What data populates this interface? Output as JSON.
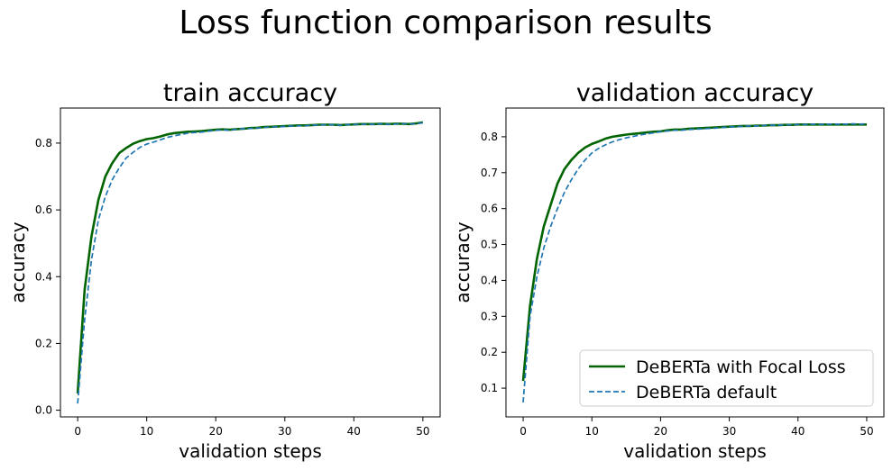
{
  "suptitle": "Loss function comparison results",
  "colors": {
    "focal": "#006400",
    "default": "#1f77b4"
  },
  "chart_data": [
    {
      "type": "line",
      "title": "train accuracy",
      "xlabel": "validation steps",
      "ylabel": "accuracy",
      "xlim": [
        -2.5,
        52.5
      ],
      "ylim": [
        -0.02,
        0.905
      ],
      "xticks": [
        0,
        10,
        20,
        30,
        40,
        50
      ],
      "yticks": [
        0.0,
        0.2,
        0.4,
        0.6,
        0.8
      ],
      "ytick_labels": [
        "0.0",
        "0.2",
        "0.4",
        "0.6",
        "0.8"
      ],
      "grid": false,
      "legend": null,
      "x": [
        0,
        1,
        2,
        3,
        4,
        5,
        6,
        7,
        8,
        9,
        10,
        11,
        12,
        13,
        14,
        15,
        16,
        17,
        18,
        19,
        20,
        21,
        22,
        23,
        24,
        25,
        26,
        27,
        28,
        29,
        30,
        31,
        32,
        33,
        34,
        35,
        36,
        37,
        38,
        39,
        40,
        41,
        42,
        43,
        44,
        45,
        46,
        47,
        48,
        49,
        50
      ],
      "series": [
        {
          "name": "DeBERTa with Focal Loss",
          "style": "solid",
          "values": [
            0.05,
            0.36,
            0.52,
            0.63,
            0.7,
            0.74,
            0.77,
            0.785,
            0.798,
            0.806,
            0.812,
            0.815,
            0.82,
            0.826,
            0.83,
            0.832,
            0.834,
            0.835,
            0.836,
            0.838,
            0.84,
            0.841,
            0.84,
            0.842,
            0.843,
            0.845,
            0.846,
            0.848,
            0.849,
            0.85,
            0.851,
            0.852,
            0.853,
            0.853,
            0.854,
            0.855,
            0.855,
            0.855,
            0.854,
            0.855,
            0.856,
            0.857,
            0.857,
            0.857,
            0.858,
            0.857,
            0.858,
            0.858,
            0.857,
            0.859,
            0.862
          ]
        },
        {
          "name": "DeBERTa default",
          "style": "dashed",
          "values": [
            0.02,
            0.27,
            0.45,
            0.57,
            0.64,
            0.69,
            0.725,
            0.755,
            0.772,
            0.787,
            0.797,
            0.803,
            0.81,
            0.817,
            0.822,
            0.826,
            0.83,
            0.832,
            0.833,
            0.836,
            0.838,
            0.84,
            0.838,
            0.842,
            0.843,
            0.844,
            0.845,
            0.847,
            0.848,
            0.849,
            0.85,
            0.851,
            0.852,
            0.852,
            0.854,
            0.854,
            0.855,
            0.855,
            0.853,
            0.855,
            0.856,
            0.856,
            0.857,
            0.856,
            0.858,
            0.856,
            0.857,
            0.858,
            0.857,
            0.858,
            0.861
          ]
        }
      ]
    },
    {
      "type": "line",
      "title": "validation accuracy",
      "xlabel": "validation steps",
      "ylabel": "accuracy",
      "xlim": [
        -2.5,
        52.5
      ],
      "ylim": [
        0.02,
        0.88
      ],
      "xticks": [
        0,
        10,
        20,
        30,
        40,
        50
      ],
      "yticks": [
        0.1,
        0.2,
        0.3,
        0.4,
        0.5,
        0.6,
        0.7,
        0.8
      ],
      "ytick_labels": [
        "0.1",
        "0.2",
        "0.3",
        "0.4",
        "0.5",
        "0.6",
        "0.7",
        "0.8"
      ],
      "grid": false,
      "legend": "lower-right",
      "x": [
        0,
        1,
        2,
        3,
        4,
        5,
        6,
        7,
        8,
        9,
        10,
        11,
        12,
        13,
        14,
        15,
        16,
        17,
        18,
        19,
        20,
        21,
        22,
        23,
        24,
        25,
        26,
        27,
        28,
        29,
        30,
        31,
        32,
        33,
        34,
        35,
        36,
        37,
        38,
        39,
        40,
        41,
        42,
        43,
        44,
        45,
        46,
        47,
        48,
        49,
        50
      ],
      "series": [
        {
          "name": "DeBERTa with Focal Loss",
          "style": "solid",
          "values": [
            0.12,
            0.33,
            0.46,
            0.55,
            0.61,
            0.67,
            0.71,
            0.735,
            0.755,
            0.77,
            0.78,
            0.787,
            0.795,
            0.8,
            0.803,
            0.806,
            0.808,
            0.81,
            0.812,
            0.814,
            0.815,
            0.818,
            0.82,
            0.82,
            0.822,
            0.823,
            0.824,
            0.825,
            0.826,
            0.827,
            0.828,
            0.829,
            0.83,
            0.83,
            0.831,
            0.831,
            0.832,
            0.832,
            0.833,
            0.833,
            0.834,
            0.834,
            0.834,
            0.834,
            0.834,
            0.834,
            0.834,
            0.834,
            0.834,
            0.834,
            0.834
          ]
        },
        {
          "name": "DeBERTa default",
          "style": "dashed",
          "values": [
            0.06,
            0.3,
            0.41,
            0.49,
            0.55,
            0.6,
            0.645,
            0.68,
            0.71,
            0.735,
            0.755,
            0.768,
            0.778,
            0.786,
            0.792,
            0.797,
            0.801,
            0.805,
            0.808,
            0.811,
            0.814,
            0.816,
            0.818,
            0.818,
            0.82,
            0.821,
            0.822,
            0.823,
            0.824,
            0.826,
            0.827,
            0.828,
            0.829,
            0.83,
            0.83,
            0.831,
            0.832,
            0.832,
            0.833,
            0.833,
            0.834,
            0.834,
            0.835,
            0.834,
            0.835,
            0.835,
            0.835,
            0.835,
            0.836,
            0.835,
            0.836
          ]
        }
      ]
    }
  ]
}
